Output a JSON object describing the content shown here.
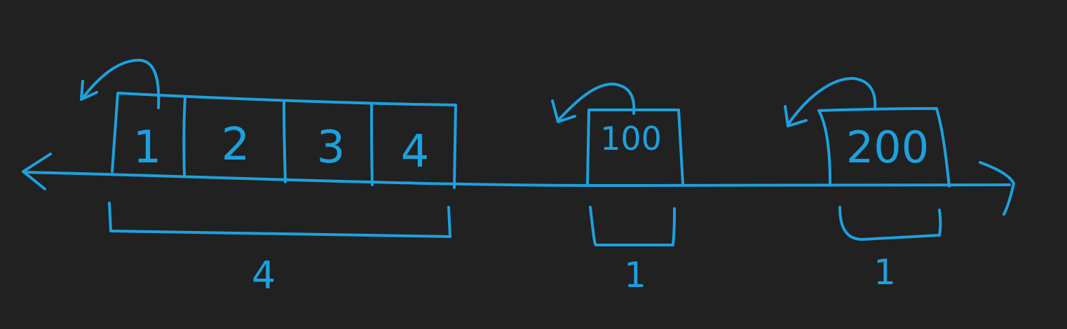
{
  "diagram": {
    "ink_color": "#1ea0dd",
    "background_color": "#212121",
    "groups": [
      {
        "id": "group-1",
        "cells": [
          "1",
          "2",
          "3",
          "4"
        ],
        "count_label": "4"
      },
      {
        "id": "group-2",
        "cells": [
          "100"
        ],
        "count_label": "1"
      },
      {
        "id": "group-3",
        "cells": [
          "200"
        ],
        "count_label": "1"
      }
    ]
  }
}
